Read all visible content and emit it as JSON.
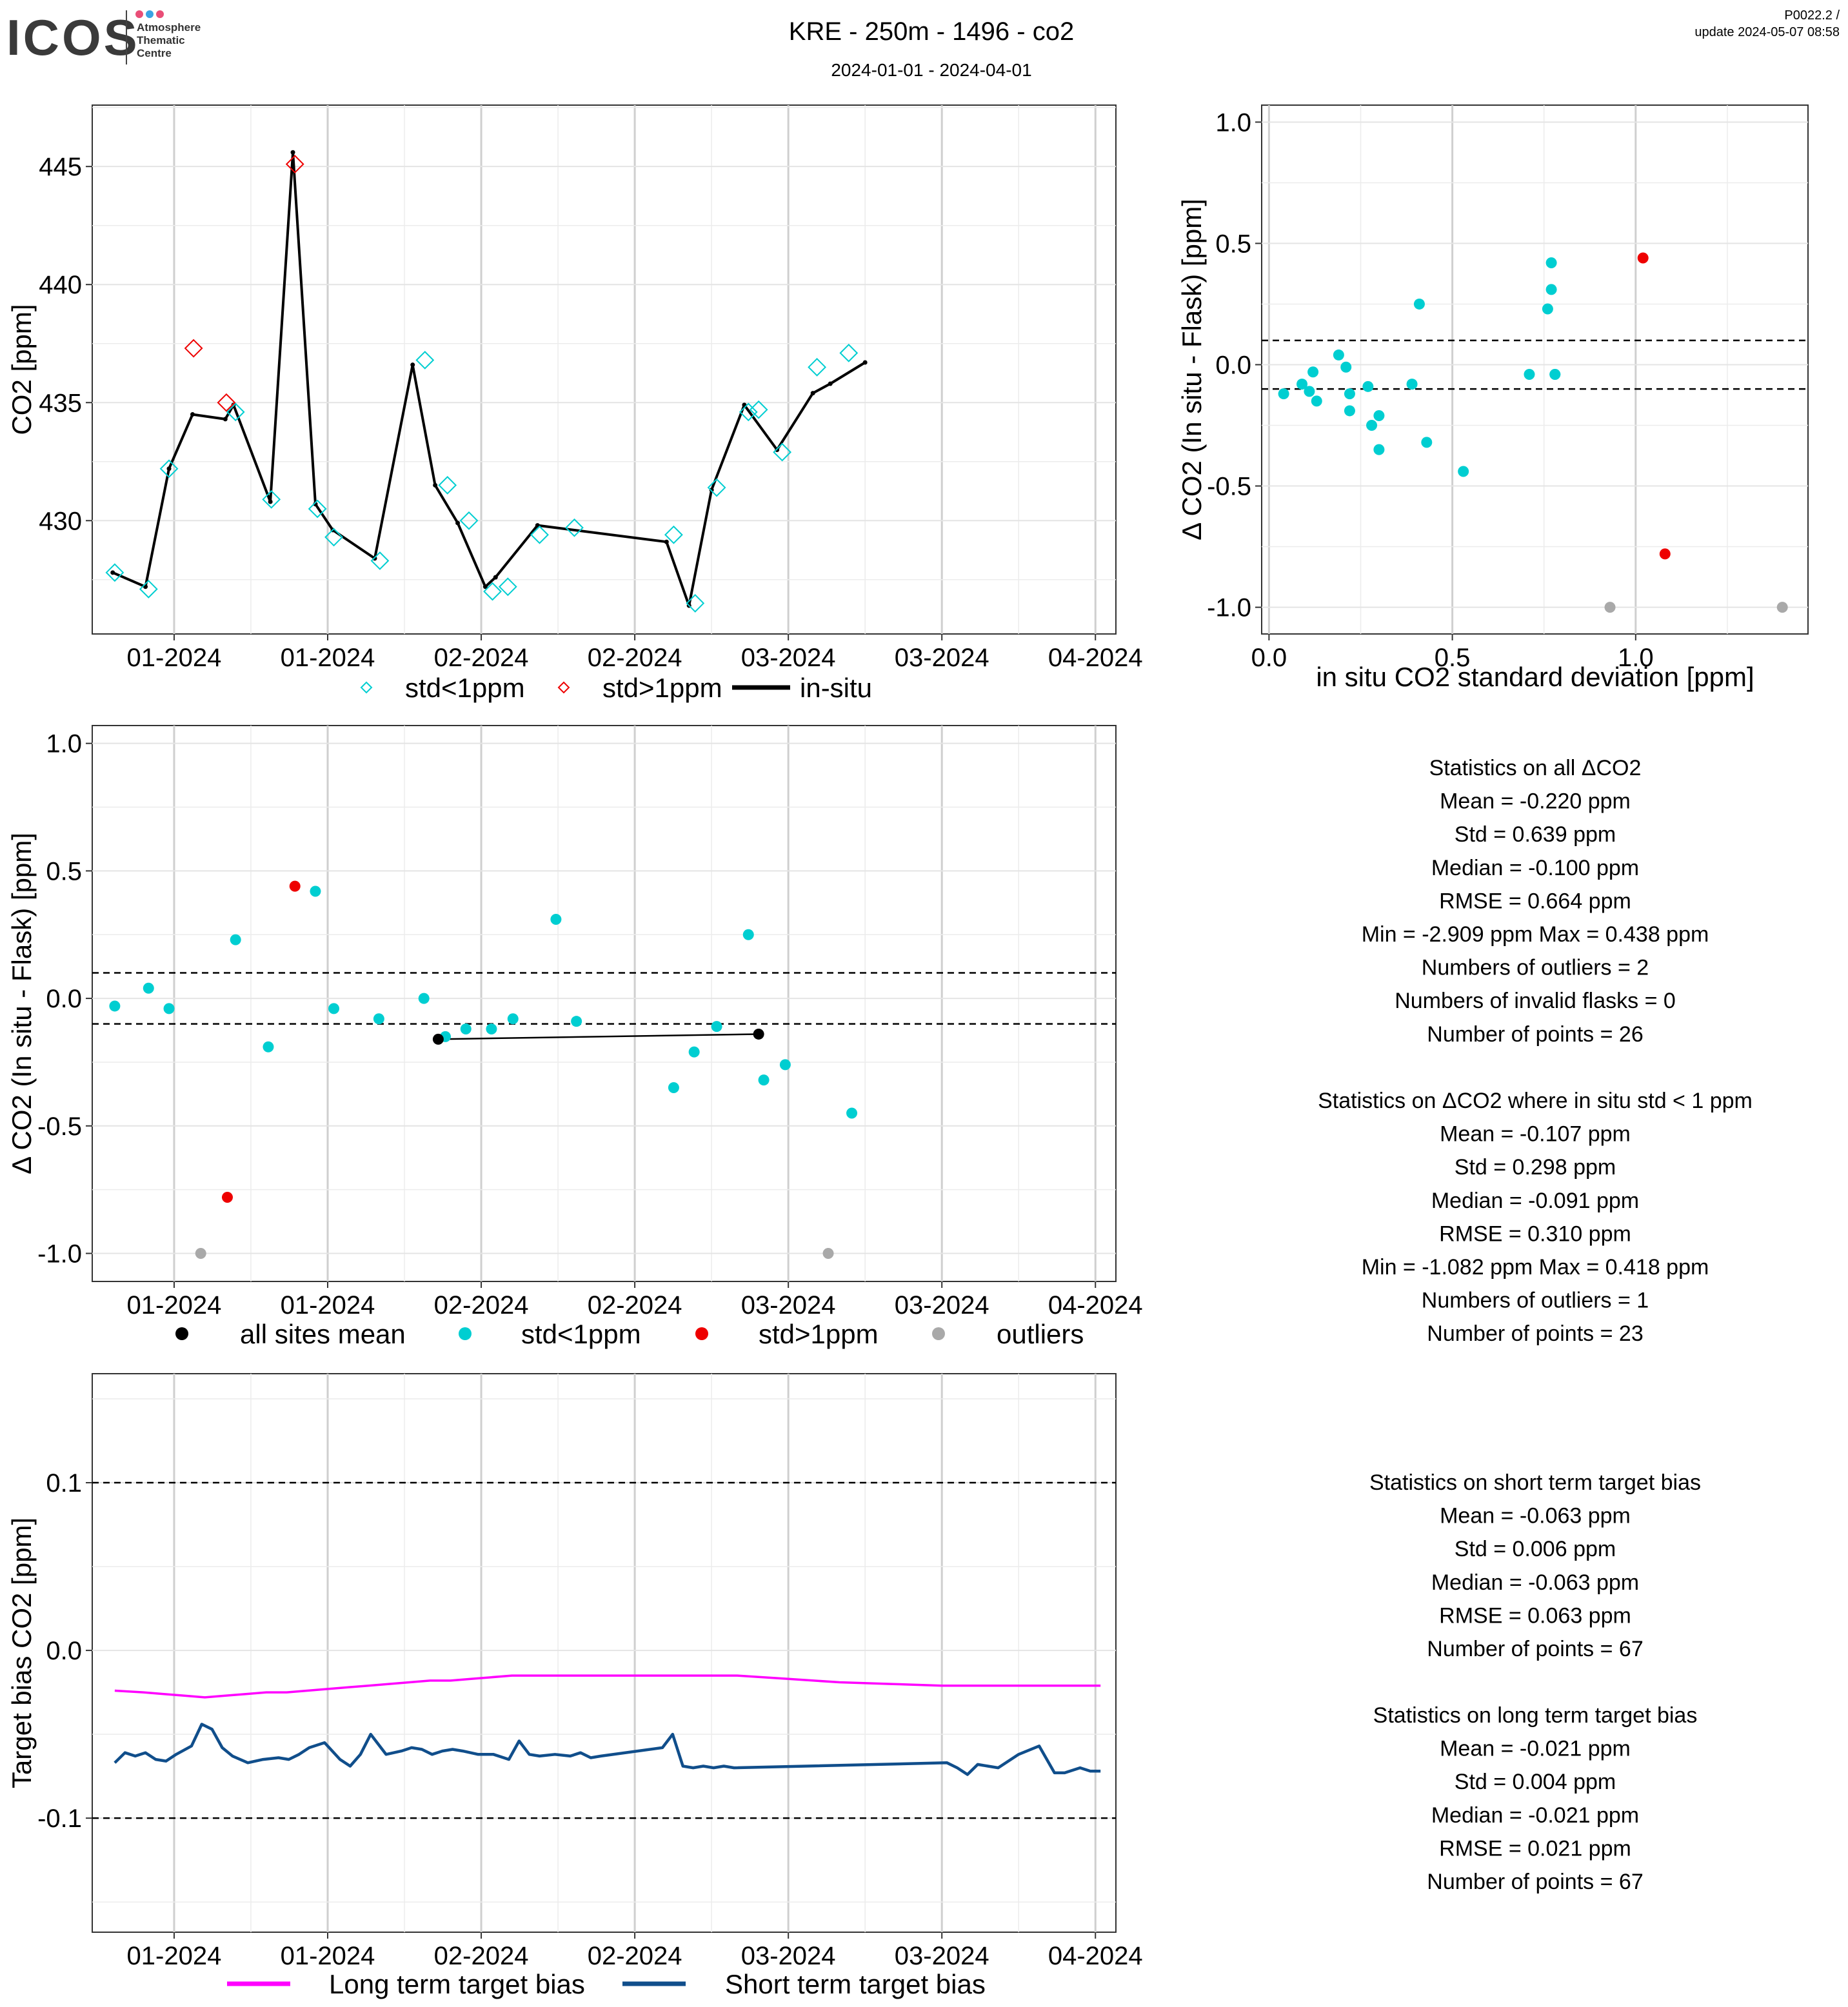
{
  "header": {
    "logo_text": "ICOS",
    "logo_sub": [
      "Atmosphere",
      "Thematic",
      "Centre"
    ],
    "title": "KRE - 250m - 1496 - co2",
    "subtitle": "2024-01-01 - 2024-04-01",
    "ref": "P0022.2 /",
    "update": "update  2024-05-07 08:58"
  },
  "colors": {
    "cyan": "#00CED1",
    "red": "#EE0000",
    "grey": "#A9A9A9",
    "black": "#000000",
    "magenta": "#FF00FF",
    "navy": "#104E8B"
  },
  "chart_data": [
    {
      "type": "line",
      "ylabel": "CO2 [ppm]",
      "x_tick_labels": [
        "01-2024",
        "01-2024",
        "02-2024",
        "02-2024",
        "03-2024",
        "03-2024",
        "04-2024"
      ],
      "x_tick_days": [
        0,
        15,
        30,
        45,
        60,
        75,
        90
      ],
      "y_ticks": [
        430,
        435,
        440,
        445
      ],
      "ylim": [
        425.2,
        447.6
      ],
      "xlim": [
        -8,
        92
      ],
      "legend": [
        {
          "label": "std<1ppm",
          "marker": "diamond-open",
          "color": "#00CED1"
        },
        {
          "label": "std>1ppm",
          "marker": "diamond-open",
          "color": "#EE0000"
        },
        {
          "label": "in-situ",
          "marker": "line",
          "color": "#000000"
        }
      ],
      "in_situ": {
        "x": [
          -6,
          -2.8,
          -0.5,
          1.8,
          5,
          5.8,
          9.4,
          11.6,
          13.8,
          15.5,
          19.6,
          23.3,
          25.5,
          27.7,
          30.4,
          31.4,
          35.5,
          48.1,
          50.3,
          52.5,
          55.7,
          58.9,
          62.4,
          64.1,
          67.5
        ],
        "y": [
          427.8,
          427.2,
          432.2,
          434.5,
          434.3,
          434.9,
          430.8,
          445.6,
          430.7,
          429.6,
          428.4,
          436.6,
          431.5,
          429.9,
          427.2,
          427.6,
          429.8,
          429.1,
          426.4,
          431.3,
          434.9,
          433,
          435.4,
          435.8,
          436.7
        ]
      },
      "flask_std_lt_1": {
        "x": [
          -5.8,
          -2.5,
          -0.5,
          6,
          9.5,
          14,
          15.6,
          20.1,
          24.5,
          26.7,
          28.8,
          31.1,
          32.6,
          35.7,
          39.1,
          48.8,
          50.9,
          53,
          56.1,
          57.1,
          59.4,
          62.8,
          65.9
        ],
        "y": [
          427.8,
          427.1,
          432.2,
          434.6,
          430.9,
          430.5,
          429.3,
          428.3,
          436.8,
          431.5,
          430,
          427,
          427.2,
          429.4,
          429.7,
          429.4,
          426.5,
          431.4,
          434.6,
          434.7,
          432.9,
          436.5,
          437.1
        ]
      },
      "flask_std_gt_1": {
        "x": [
          1.9,
          5.1,
          11.8
        ],
        "y": [
          437.3,
          435,
          445.1
        ]
      }
    },
    {
      "type": "scatter",
      "xlabel": "in situ CO2 standard deviation [ppm]",
      "ylabel": "Δ CO2 (In situ - Flask) [ppm]",
      "x_ticks": [
        0.0,
        0.5,
        1.0
      ],
      "y_ticks": [
        -1.0,
        -0.5,
        0.0,
        0.5,
        1.0
      ],
      "xlim": [
        -0.02,
        1.47
      ],
      "ylim": [
        -1.11,
        1.07
      ],
      "hlines": [
        0.1,
        -0.1
      ],
      "std_lt_1": {
        "x": [
          0.04,
          0.09,
          0.11,
          0.12,
          0.13,
          0.19,
          0.21,
          0.22,
          0.22,
          0.27,
          0.28,
          0.3,
          0.3,
          0.39,
          0.41,
          0.43,
          0.53,
          0.71,
          0.76,
          0.77,
          0.77,
          0.78,
          0.78
        ],
        "y": [
          -0.12,
          -0.08,
          -0.11,
          -0.03,
          -0.15,
          0.04,
          -0.01,
          -0.19,
          -0.12,
          -0.09,
          -0.25,
          -0.21,
          -0.35,
          -0.08,
          0.25,
          -0.32,
          -0.44,
          -0.04,
          0.23,
          0.31,
          0.42,
          -0.04,
          -0.04
        ]
      },
      "std_gt_1": {
        "x": [
          1.02,
          1.08
        ],
        "y": [
          0.44,
          -0.78
        ]
      },
      "outliers": {
        "x": [
          0.93,
          1.4
        ],
        "y": [
          -1.0,
          -1.0
        ]
      }
    },
    {
      "type": "scatter",
      "ylabel": "Δ CO2 (In situ - Flask) [ppm]",
      "x_tick_labels": [
        "01-2024",
        "01-2024",
        "02-2024",
        "02-2024",
        "03-2024",
        "03-2024",
        "04-2024"
      ],
      "x_tick_days": [
        0,
        15,
        30,
        45,
        60,
        75,
        90
      ],
      "y_ticks": [
        -1.0,
        -0.5,
        0.0,
        0.5,
        1.0
      ],
      "xlim": [
        -8,
        92
      ],
      "ylim": [
        -1.11,
        1.07
      ],
      "hlines": [
        0.1,
        -0.1
      ],
      "legend": [
        {
          "label": "all sites mean",
          "color": "#000000"
        },
        {
          "label": "std<1ppm",
          "color": "#00CED1"
        },
        {
          "label": "std>1ppm",
          "color": "#EE0000"
        },
        {
          "label": "outliers",
          "color": "#A9A9A9"
        }
      ],
      "all_sites_mean": {
        "x": [
          25.8,
          57.1
        ],
        "y": [
          -0.16,
          -0.14
        ]
      },
      "std_lt_1": {
        "x": [
          -5.8,
          -2.5,
          -0.5,
          6,
          9.2,
          13.8,
          15.6,
          20,
          24.4,
          26.5,
          28.5,
          31,
          33.1,
          37.3,
          39.3,
          48.8,
          50.8,
          53,
          56.1,
          57.6,
          59.7,
          66.2
        ],
        "y": [
          -0.03,
          0.04,
          -0.04,
          0.23,
          -0.19,
          0.42,
          -0.04,
          -0.08,
          0,
          -0.15,
          -0.12,
          -0.12,
          -0.08,
          0.31,
          -0.09,
          -0.35,
          -0.21,
          -0.11,
          0.25,
          -0.32,
          -0.26,
          -0.45
        ]
      },
      "std_gt_1": {
        "x": [
          5.2,
          11.8
        ],
        "y": [
          -0.78,
          0.44
        ]
      },
      "outliers": {
        "x": [
          2.6,
          63.9
        ],
        "y": [
          -1.0,
          -1.0
        ]
      }
    },
    {
      "type": "line",
      "ylabel": "Target bias CO2 [ppm]",
      "x_tick_labels": [
        "01-2024",
        "01-2024",
        "02-2024",
        "02-2024",
        "03-2024",
        "03-2024",
        "04-2024"
      ],
      "x_tick_days": [
        0,
        15,
        30,
        45,
        60,
        75,
        90
      ],
      "y_ticks": [
        -0.1,
        0.0,
        0.1
      ],
      "xlim": [
        -8,
        92
      ],
      "ylim": [
        -0.168,
        0.165
      ],
      "hlines": [
        0.1,
        -0.1
      ],
      "legend": [
        {
          "label": "Long term target bias",
          "color": "#FF00FF"
        },
        {
          "label": "Short term target bias",
          "color": "#104E8B"
        }
      ],
      "series": [
        {
          "name": "Long term target bias",
          "x": [
            -5.8,
            -3,
            -1,
            1,
            3,
            5,
            7,
            9,
            11,
            13,
            15,
            17,
            19,
            21,
            23,
            25,
            27,
            29,
            31,
            33,
            35,
            40,
            45,
            50,
            55,
            60,
            65,
            70,
            75,
            80,
            85,
            90.5
          ],
          "y": [
            -0.024,
            -0.025,
            -0.026,
            -0.027,
            -0.028,
            -0.027,
            -0.026,
            -0.025,
            -0.025,
            -0.024,
            -0.023,
            -0.022,
            -0.021,
            -0.02,
            -0.019,
            -0.018,
            -0.018,
            -0.017,
            -0.016,
            -0.015,
            -0.015,
            -0.015,
            -0.015,
            -0.015,
            -0.015,
            -0.017,
            -0.019,
            -0.02,
            -0.021,
            -0.021,
            -0.021,
            -0.021
          ]
        },
        {
          "name": "Short term target bias",
          "x": [
            -5.8,
            -4.8,
            -3.8,
            -2.8,
            -1.8,
            -0.8,
            0.2,
            1.7,
            2.7,
            3.7,
            4.7,
            5.7,
            7.2,
            8.7,
            10.2,
            11.2,
            12.2,
            13.2,
            14.7,
            16.2,
            17.2,
            18.2,
            19.2,
            20.7,
            22.2,
            23.2,
            24.2,
            25.2,
            26.2,
            27.2,
            28.2,
            29.7,
            31.2,
            32.7,
            33.7,
            34.7,
            35.7,
            37.2,
            38.7,
            39.7,
            40.7,
            41.7,
            47.7,
            48.7,
            49.7,
            50.7,
            51.7,
            52.7,
            53.7,
            54.7,
            75.5,
            76.5,
            77.5,
            78.5,
            79.5,
            80.5,
            82.5,
            84.5,
            86,
            87,
            88.5,
            89.5,
            90.5
          ],
          "y": [
            -0.067,
            -0.061,
            -0.063,
            -0.061,
            -0.065,
            -0.066,
            -0.062,
            -0.057,
            -0.044,
            -0.047,
            -0.058,
            -0.063,
            -0.067,
            -0.065,
            -0.064,
            -0.065,
            -0.062,
            -0.058,
            -0.055,
            -0.065,
            -0.069,
            -0.062,
            -0.05,
            -0.062,
            -0.06,
            -0.058,
            -0.059,
            -0.062,
            -0.06,
            -0.059,
            -0.06,
            -0.062,
            -0.062,
            -0.065,
            -0.054,
            -0.062,
            -0.063,
            -0.062,
            -0.063,
            -0.061,
            -0.064,
            -0.063,
            -0.058,
            -0.05,
            -0.069,
            -0.07,
            -0.069,
            -0.07,
            -0.069,
            -0.07,
            -0.067,
            -0.07,
            -0.074,
            -0.068,
            -0.069,
            -0.07,
            -0.062,
            -0.057,
            -0.073,
            -0.073,
            -0.07,
            -0.072,
            -0.072
          ]
        }
      ]
    }
  ],
  "stats": {
    "all": {
      "title": "Statistics on all ΔCO2",
      "lines": [
        "Mean =  -0.220 ppm",
        "Std =  0.639 ppm",
        "Median =  -0.100 ppm",
        "RMSE =  0.664 ppm",
        "Min =  -2.909 ppm Max =  0.438 ppm",
        "Numbers of outliers =  2",
        "Numbers of invalid flasks =  0",
        "Number of points =  26"
      ]
    },
    "insitu_std_lt_1": {
      "title": "Statistics on ΔCO2 where in situ std < 1 ppm",
      "lines": [
        "Mean =  -0.107 ppm",
        "Std =  0.298 ppm",
        "Median =  -0.091 ppm",
        "RMSE =  0.310 ppm",
        "Min =  -1.082 ppm Max =  0.418 ppm",
        "Numbers of outliers =  1",
        "Number of points =  23"
      ]
    },
    "short_term": {
      "title": "Statistics on short term target bias",
      "lines": [
        "Mean =  -0.063 ppm",
        "Std =  0.006 ppm",
        "Median =  -0.063 ppm",
        "RMSE =  0.063 ppm",
        "Number of points =  67"
      ]
    },
    "long_term": {
      "title": "Statistics on long term target bias",
      "lines": [
        "Mean =  -0.021 ppm",
        "Std =  0.004 ppm",
        "Median =  -0.021 ppm",
        "RMSE =  0.021 ppm",
        "Number of points =  67"
      ]
    }
  }
}
